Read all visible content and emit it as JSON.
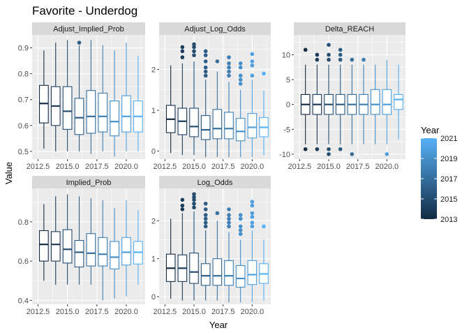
{
  "title": "Favorite - Underdog",
  "xlabel": "Year",
  "ylabel": "Value",
  "legend": {
    "title": "Year",
    "labels": [
      "2021",
      "2019",
      "2017",
      "2015",
      "2013"
    ],
    "range": [
      2013,
      2021
    ],
    "colors": {
      "low": "#132b43",
      "high": "#56b1f7"
    },
    "position": "right"
  },
  "chart_data": [
    {
      "facet": "Adjust_Implied_Prob",
      "type": "boxplot",
      "xlim": [
        2012.0,
        2021.6
      ],
      "ylim": [
        0.47,
        0.95
      ],
      "xticks": [
        "2012.5",
        "2015.0",
        "2017.5",
        "2020.0"
      ],
      "xtick_values": [
        2012.5,
        2015.0,
        2017.5,
        2020.0
      ],
      "yticks": [
        "0.5",
        "0.6",
        "0.7",
        "0.8",
        "0.9"
      ],
      "ytick_values": [
        0.5,
        0.6,
        0.7,
        0.8,
        0.9
      ],
      "boxes": [
        {
          "year": 2013,
          "q1": 0.61,
          "median": 0.685,
          "q3": 0.755,
          "min": 0.51,
          "max": 0.89,
          "outliers": []
        },
        {
          "year": 2014,
          "q1": 0.6,
          "median": 0.675,
          "q3": 0.75,
          "min": 0.5,
          "max": 0.92,
          "outliers": []
        },
        {
          "year": 2015,
          "q1": 0.585,
          "median": 0.655,
          "q3": 0.75,
          "min": 0.5,
          "max": 0.93,
          "outliers": []
        },
        {
          "year": 2016,
          "q1": 0.565,
          "median": 0.63,
          "q3": 0.705,
          "min": 0.5,
          "max": 0.91,
          "outliers": [
            0.92
          ]
        },
        {
          "year": 2017,
          "q1": 0.57,
          "median": 0.635,
          "q3": 0.735,
          "min": 0.49,
          "max": 0.93,
          "outliers": []
        },
        {
          "year": 2018,
          "q1": 0.575,
          "median": 0.635,
          "q3": 0.725,
          "min": 0.5,
          "max": 0.91,
          "outliers": []
        },
        {
          "year": 2019,
          "q1": 0.56,
          "median": 0.615,
          "q3": 0.695,
          "min": 0.48,
          "max": 0.89,
          "outliers": []
        },
        {
          "year": 2020,
          "q1": 0.575,
          "median": 0.635,
          "q3": 0.715,
          "min": 0.5,
          "max": 0.92,
          "outliers": []
        },
        {
          "year": 2021,
          "q1": 0.575,
          "median": 0.635,
          "q3": 0.695,
          "min": 0.5,
          "max": 0.87,
          "outliers": []
        }
      ]
    },
    {
      "facet": "Adjust_Log_Odds",
      "type": "boxplot",
      "xlim": [
        2012.0,
        2021.6
      ],
      "ylim": [
        -0.2,
        2.85
      ],
      "xticks": [
        "2012.5",
        "2015.0",
        "2017.5",
        "2020.0"
      ],
      "xtick_values": [
        2012.5,
        2015.0,
        2017.5,
        2020.0
      ],
      "yticks": [
        "0",
        "1",
        "2"
      ],
      "ytick_values": [
        0,
        1,
        2
      ],
      "boxes": [
        {
          "year": 2013,
          "q1": 0.45,
          "median": 0.78,
          "q3": 1.12,
          "min": -0.05,
          "max": 2.1,
          "outliers": []
        },
        {
          "year": 2014,
          "q1": 0.4,
          "median": 0.73,
          "q3": 1.05,
          "min": -0.1,
          "max": 2.15,
          "outliers": [
            2.3,
            2.45,
            2.55
          ]
        },
        {
          "year": 2015,
          "q1": 0.35,
          "median": 0.6,
          "q3": 1.05,
          "min": -0.1,
          "max": 2.2,
          "outliers": [
            2.35,
            2.45,
            2.55,
            2.62
          ]
        },
        {
          "year": 2016,
          "q1": 0.28,
          "median": 0.52,
          "q3": 0.87,
          "min": -0.15,
          "max": 1.75,
          "outliers": [
            1.85,
            1.95,
            2.05,
            2.2,
            2.35,
            2.45
          ]
        },
        {
          "year": 2017,
          "q1": 0.3,
          "median": 0.55,
          "q3": 1.02,
          "min": -0.15,
          "max": 1.95,
          "outliers": [
            2.2
          ]
        },
        {
          "year": 2018,
          "q1": 0.3,
          "median": 0.55,
          "q3": 0.95,
          "min": -0.15,
          "max": 1.7,
          "outliers": [
            1.85,
            1.95,
            2.05,
            2.15,
            2.3
          ]
        },
        {
          "year": 2019,
          "q1": 0.25,
          "median": 0.48,
          "q3": 0.8,
          "min": -0.15,
          "max": 1.5,
          "outliers": [
            1.65,
            1.75,
            1.85,
            2.05,
            2.15
          ]
        },
        {
          "year": 2020,
          "q1": 0.32,
          "median": 0.58,
          "q3": 0.92,
          "min": -0.15,
          "max": 1.75,
          "outliers": [
            1.85,
            2.1,
            2.2,
            2.38
          ]
        },
        {
          "year": 2021,
          "q1": 0.35,
          "median": 0.58,
          "q3": 0.82,
          "min": -0.1,
          "max": 1.48,
          "outliers": [
            1.9
          ]
        }
      ]
    },
    {
      "facet": "Delta_REACH",
      "type": "boxplot",
      "xlim": [
        2012.0,
        2021.6
      ],
      "ylim": [
        -11,
        14
      ],
      "xticks": [
        "2012.5",
        "2015.0",
        "2017.5",
        "2020.0"
      ],
      "xtick_values": [
        2012.5,
        2015.0,
        2017.5,
        2020.0
      ],
      "yticks": [
        "-10",
        "-5",
        "0",
        "5",
        "10"
      ],
      "ytick_values": [
        -10,
        -5,
        0,
        5,
        10
      ],
      "boxes": [
        {
          "year": 2013,
          "q1": -2,
          "median": 0,
          "q3": 2,
          "min": -8,
          "max": 8,
          "outliers": [
            11,
            -9
          ]
        },
        {
          "year": 2014,
          "q1": -2,
          "median": 0,
          "q3": 2,
          "min": -8,
          "max": 8,
          "outliers": [
            9,
            10,
            -9
          ]
        },
        {
          "year": 2015,
          "q1": -2,
          "median": 0,
          "q3": 2,
          "min": -8,
          "max": 8,
          "outliers": [
            9,
            10,
            12,
            -9,
            -10
          ]
        },
        {
          "year": 2016,
          "q1": -2,
          "median": 0,
          "q3": 2,
          "min": -8,
          "max": 8,
          "outliers": [
            9,
            10,
            11,
            -9
          ]
        },
        {
          "year": 2017,
          "q1": -2,
          "median": 0,
          "q3": 2,
          "min": -8,
          "max": 8,
          "outliers": [
            9,
            -10
          ]
        },
        {
          "year": 2018,
          "q1": -2,
          "median": 0,
          "q3": 2,
          "min": -8,
          "max": 8,
          "outliers": [
            9
          ]
        },
        {
          "year": 2019,
          "q1": -2,
          "median": 0,
          "q3": 3,
          "min": -8,
          "max": 8,
          "outliers": []
        },
        {
          "year": 2020,
          "q1": -2,
          "median": 0,
          "q3": 3,
          "min": -8,
          "max": 9,
          "outliers": [
            -10
          ]
        },
        {
          "year": 2021,
          "q1": -1,
          "median": 1,
          "q3": 2,
          "min": -7,
          "max": 8,
          "outliers": []
        }
      ]
    },
    {
      "facet": "Implied_Prob",
      "type": "boxplot",
      "xlim": [
        2012.0,
        2021.6
      ],
      "ylim": [
        0.38,
        0.97
      ],
      "xticks": [
        "2012.5",
        "2015.0",
        "2017.5",
        "2020.0"
      ],
      "xtick_values": [
        2012.5,
        2015.0,
        2017.5,
        2020.0
      ],
      "yticks": [
        "0.4",
        "0.6",
        "0.8"
      ],
      "ytick_values": [
        0.4,
        0.6,
        0.8
      ],
      "boxes": [
        {
          "year": 2013,
          "q1": 0.6,
          "median": 0.685,
          "q3": 0.755,
          "min": 0.5,
          "max": 0.89,
          "outliers": []
        },
        {
          "year": 2014,
          "q1": 0.6,
          "median": 0.685,
          "q3": 0.75,
          "min": 0.48,
          "max": 0.93,
          "outliers": []
        },
        {
          "year": 2015,
          "q1": 0.59,
          "median": 0.66,
          "q3": 0.76,
          "min": 0.48,
          "max": 0.94,
          "outliers": []
        },
        {
          "year": 2016,
          "q1": 0.57,
          "median": 0.645,
          "q3": 0.705,
          "min": 0.48,
          "max": 0.93,
          "outliers": []
        },
        {
          "year": 2017,
          "q1": 0.575,
          "median": 0.64,
          "q3": 0.74,
          "min": 0.48,
          "max": 0.92,
          "outliers": []
        },
        {
          "year": 2018,
          "q1": 0.575,
          "median": 0.635,
          "q3": 0.72,
          "min": 0.4,
          "max": 0.91,
          "outliers": []
        },
        {
          "year": 2019,
          "q1": 0.56,
          "median": 0.62,
          "q3": 0.7,
          "min": 0.41,
          "max": 0.87,
          "outliers": []
        },
        {
          "year": 2020,
          "q1": 0.58,
          "median": 0.645,
          "q3": 0.72,
          "min": 0.42,
          "max": 0.91,
          "outliers": []
        },
        {
          "year": 2021,
          "q1": 0.585,
          "median": 0.645,
          "q3": 0.7,
          "min": 0.48,
          "max": 0.86,
          "outliers": []
        }
      ]
    },
    {
      "facet": "Log_Odds",
      "type": "boxplot",
      "xlim": [
        2012.0,
        2021.6
      ],
      "ylim": [
        -0.2,
        2.85
      ],
      "xticks": [
        "2012.5",
        "2015.0",
        "2017.5",
        "2020.0"
      ],
      "xtick_values": [
        2012.5,
        2015.0,
        2017.5,
        2020.0
      ],
      "yticks": [
        "0",
        "1",
        "2"
      ],
      "ytick_values": [
        0,
        1,
        2
      ],
      "boxes": [
        {
          "year": 2013,
          "q1": 0.4,
          "median": 0.75,
          "q3": 1.12,
          "min": -0.05,
          "max": 2.05,
          "outliers": []
        },
        {
          "year": 2014,
          "q1": 0.4,
          "median": 0.75,
          "q3": 1.1,
          "min": -0.1,
          "max": 2.2,
          "outliers": [
            2.3,
            2.4,
            2.55
          ]
        },
        {
          "year": 2015,
          "q1": 0.35,
          "median": 0.65,
          "q3": 1.15,
          "min": -0.1,
          "max": 2.25,
          "outliers": [
            2.35,
            2.45,
            2.55,
            2.62,
            2.7
          ]
        },
        {
          "year": 2016,
          "q1": 0.3,
          "median": 0.55,
          "q3": 0.87,
          "min": -0.1,
          "max": 1.75,
          "outliers": [
            1.85,
            1.95,
            2.05,
            2.15,
            2.3,
            2.45
          ]
        },
        {
          "year": 2017,
          "q1": 0.3,
          "median": 0.55,
          "q3": 1.0,
          "min": -0.1,
          "max": 2.0,
          "outliers": [
            2.2
          ]
        },
        {
          "year": 2018,
          "q1": 0.3,
          "median": 0.55,
          "q3": 0.95,
          "min": -0.15,
          "max": 1.7,
          "outliers": [
            1.85,
            1.95,
            2.05,
            2.15,
            2.3
          ]
        },
        {
          "year": 2019,
          "q1": 0.25,
          "median": 0.48,
          "q3": 0.82,
          "min": -0.15,
          "max": 1.5,
          "outliers": [
            1.65,
            1.75,
            1.85,
            2.05,
            2.15
          ]
        },
        {
          "year": 2020,
          "q1": 0.32,
          "median": 0.58,
          "q3": 0.95,
          "min": -0.15,
          "max": 1.75,
          "outliers": [
            1.85,
            1.95,
            2.1,
            2.2,
            2.4,
            2.5
          ]
        },
        {
          "year": 2021,
          "q1": 0.35,
          "median": 0.6,
          "q3": 0.87,
          "min": -0.1,
          "max": 1.5,
          "outliers": [
            1.85
          ]
        }
      ]
    }
  ]
}
